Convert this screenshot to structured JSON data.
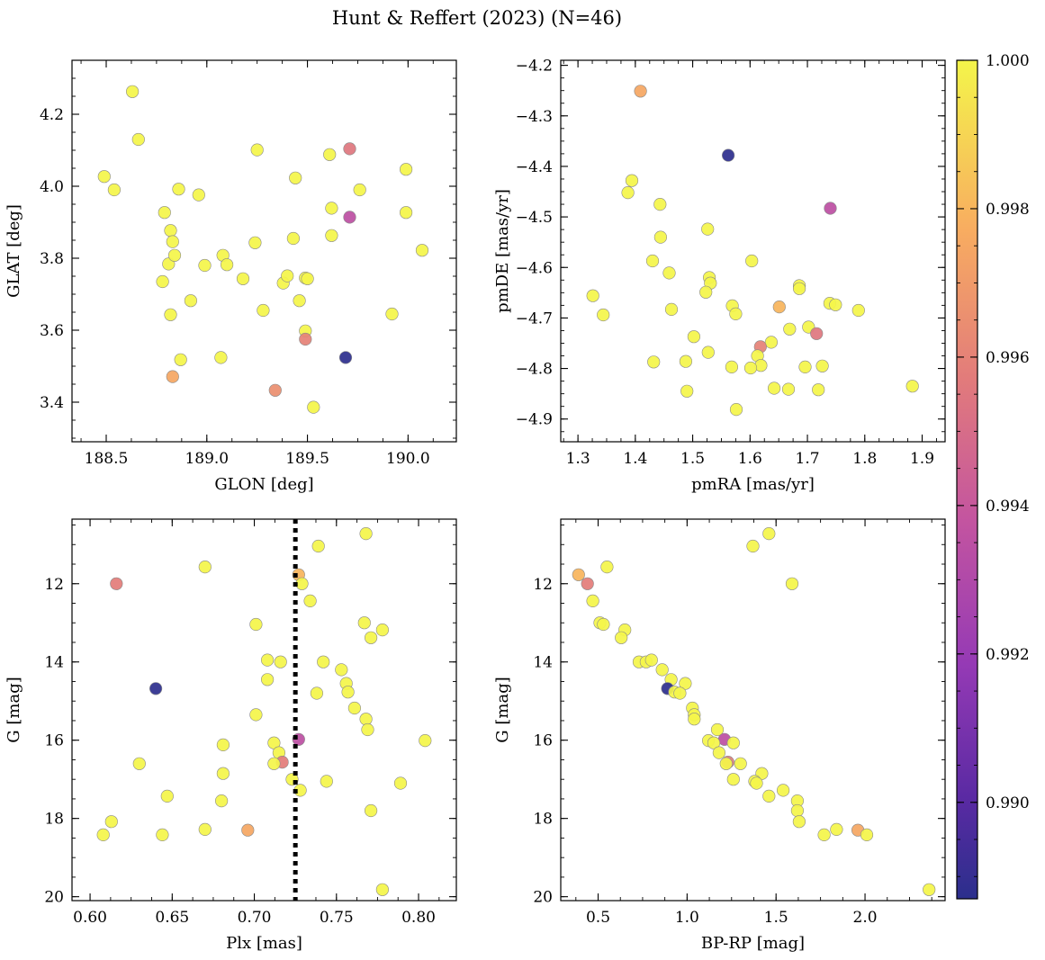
{
  "figure": {
    "title": "Hunt & Reffert (2023) (N=46)"
  },
  "colorbar": {
    "colormap": "plasma",
    "range": [
      0.9887,
      1.0
    ],
    "ticks": [
      0.99,
      0.992,
      0.994,
      0.996,
      0.998,
      1.0
    ],
    "tick_labels": [
      "0.990",
      "0.992",
      "0.994",
      "0.996",
      "0.998",
      "1.000"
    ]
  },
  "chart_data": [
    {
      "type": "scatter",
      "id": "glon-glat",
      "xlabel": "GLON [deg]",
      "ylabel": "GLAT [deg]",
      "xlim": [
        188.33,
        190.24
      ],
      "ylim": [
        3.29,
        4.35
      ],
      "y_inverted": false,
      "xticks": [
        188.5,
        189.0,
        189.5,
        190.0
      ],
      "xtick_labels": [
        "188.5",
        "189.0",
        "189.5",
        "190.0"
      ],
      "yticks": [
        3.4,
        3.6,
        3.8,
        4.0,
        4.2
      ],
      "ytick_labels": [
        "3.4",
        "3.6",
        "3.8",
        "4.0",
        "4.2"
      ],
      "points": [
        {
          "x": 188.49,
          "y": 4.027,
          "c": 1.0
        },
        {
          "x": 188.54,
          "y": 3.99,
          "c": 1.0
        },
        {
          "x": 188.63,
          "y": 4.263,
          "c": 1.0
        },
        {
          "x": 188.66,
          "y": 4.13,
          "c": 1.0
        },
        {
          "x": 188.78,
          "y": 3.735,
          "c": 1.0
        },
        {
          "x": 188.79,
          "y": 3.927,
          "c": 1.0
        },
        {
          "x": 188.81,
          "y": 3.784,
          "c": 1.0
        },
        {
          "x": 188.82,
          "y": 3.877,
          "c": 1.0
        },
        {
          "x": 188.83,
          "y": 3.846,
          "c": 1.0
        },
        {
          "x": 188.84,
          "y": 3.808,
          "c": 1.0
        },
        {
          "x": 188.82,
          "y": 3.643,
          "c": 1.0
        },
        {
          "x": 188.86,
          "y": 3.992,
          "c": 1.0
        },
        {
          "x": 188.83,
          "y": 3.471,
          "c": 0.9975
        },
        {
          "x": 188.87,
          "y": 3.518,
          "c": 1.0
        },
        {
          "x": 188.92,
          "y": 3.682,
          "c": 1.0
        },
        {
          "x": 188.96,
          "y": 3.976,
          "c": 1.0
        },
        {
          "x": 188.99,
          "y": 3.78,
          "c": 1.0
        },
        {
          "x": 189.07,
          "y": 3.524,
          "c": 1.0
        },
        {
          "x": 189.08,
          "y": 3.808,
          "c": 1.0
        },
        {
          "x": 189.1,
          "y": 3.782,
          "c": 1.0
        },
        {
          "x": 189.18,
          "y": 3.743,
          "c": 1.0
        },
        {
          "x": 189.24,
          "y": 3.843,
          "c": 1.0
        },
        {
          "x": 189.25,
          "y": 4.101,
          "c": 1.0
        },
        {
          "x": 189.28,
          "y": 3.655,
          "c": 1.0
        },
        {
          "x": 189.34,
          "y": 3.433,
          "c": 0.9965
        },
        {
          "x": 189.38,
          "y": 3.731,
          "c": 1.0
        },
        {
          "x": 189.4,
          "y": 3.751,
          "c": 1.0
        },
        {
          "x": 189.43,
          "y": 3.855,
          "c": 1.0
        },
        {
          "x": 189.44,
          "y": 4.023,
          "c": 1.0
        },
        {
          "x": 189.46,
          "y": 3.682,
          "c": 1.0
        },
        {
          "x": 189.49,
          "y": 3.745,
          "c": 1.0
        },
        {
          "x": 189.5,
          "y": 3.743,
          "c": 1.0
        },
        {
          "x": 189.49,
          "y": 3.598,
          "c": 1.0
        },
        {
          "x": 189.49,
          "y": 3.575,
          "c": 0.996
        },
        {
          "x": 189.53,
          "y": 3.386,
          "c": 1.0
        },
        {
          "x": 189.61,
          "y": 4.088,
          "c": 1.0
        },
        {
          "x": 189.62,
          "y": 3.939,
          "c": 1.0
        },
        {
          "x": 189.62,
          "y": 3.863,
          "c": 1.0
        },
        {
          "x": 189.69,
          "y": 3.524,
          "c": 0.9888
        },
        {
          "x": 189.71,
          "y": 4.104,
          "c": 0.9955
        },
        {
          "x": 189.71,
          "y": 3.914,
          "c": 0.9935
        },
        {
          "x": 189.76,
          "y": 3.99,
          "c": 1.0
        },
        {
          "x": 189.92,
          "y": 3.645,
          "c": 1.0
        },
        {
          "x": 189.99,
          "y": 4.047,
          "c": 1.0
        },
        {
          "x": 189.99,
          "y": 3.927,
          "c": 1.0
        },
        {
          "x": 190.07,
          "y": 3.822,
          "c": 1.0
        }
      ]
    },
    {
      "type": "scatter",
      "id": "pmra-pmde",
      "xlabel": "pmRA [mas/yr]",
      "ylabel": "pmDE [mas/yr]",
      "xlim": [
        1.27,
        1.94
      ],
      "ylim": [
        -4.945,
        -4.19
      ],
      "y_inverted": false,
      "xticks": [
        1.3,
        1.4,
        1.5,
        1.6,
        1.7,
        1.8,
        1.9
      ],
      "xtick_labels": [
        "1.3",
        "1.4",
        "1.5",
        "1.6",
        "1.7",
        "1.8",
        "1.9"
      ],
      "yticks": [
        -4.9,
        -4.8,
        -4.7,
        -4.6,
        -4.5,
        -4.4,
        -4.3,
        -4.2
      ],
      "ytick_labels": [
        "−4.9",
        "−4.8",
        "−4.7",
        "−4.6",
        "−4.5",
        "−4.4",
        "−4.3",
        "−4.2"
      ],
      "points": [
        {
          "x": 1.409,
          "y": -4.251,
          "c": 0.9975
        },
        {
          "x": 1.562,
          "y": -4.378,
          "c": 0.9888
        },
        {
          "x": 1.394,
          "y": -4.428,
          "c": 1.0
        },
        {
          "x": 1.387,
          "y": -4.452,
          "c": 1.0
        },
        {
          "x": 1.443,
          "y": -4.475,
          "c": 1.0
        },
        {
          "x": 1.74,
          "y": -4.483,
          "c": 0.9935
        },
        {
          "x": 1.526,
          "y": -4.524,
          "c": 1.0
        },
        {
          "x": 1.444,
          "y": -4.54,
          "c": 1.0
        },
        {
          "x": 1.43,
          "y": -4.587,
          "c": 1.0
        },
        {
          "x": 1.603,
          "y": -4.587,
          "c": 1.0
        },
        {
          "x": 1.459,
          "y": -4.611,
          "c": 1.0
        },
        {
          "x": 1.529,
          "y": -4.62,
          "c": 1.0
        },
        {
          "x": 1.531,
          "y": -4.631,
          "c": 1.0
        },
        {
          "x": 1.686,
          "y": -4.636,
          "c": 1.0
        },
        {
          "x": 1.686,
          "y": -4.642,
          "c": 1.0
        },
        {
          "x": 1.523,
          "y": -4.649,
          "c": 1.0
        },
        {
          "x": 1.326,
          "y": -4.656,
          "c": 1.0
        },
        {
          "x": 1.739,
          "y": -4.671,
          "c": 1.0
        },
        {
          "x": 1.749,
          "y": -4.674,
          "c": 1.0
        },
        {
          "x": 1.569,
          "y": -4.676,
          "c": 1.0
        },
        {
          "x": 1.651,
          "y": -4.678,
          "c": 0.998
        },
        {
          "x": 1.463,
          "y": -4.683,
          "c": 1.0
        },
        {
          "x": 1.789,
          "y": -4.685,
          "c": 1.0
        },
        {
          "x": 1.575,
          "y": -4.692,
          "c": 1.0
        },
        {
          "x": 1.344,
          "y": -4.694,
          "c": 1.0
        },
        {
          "x": 1.702,
          "y": -4.718,
          "c": 1.0
        },
        {
          "x": 1.669,
          "y": -4.722,
          "c": 1.0
        },
        {
          "x": 1.716,
          "y": -4.731,
          "c": 0.9955
        },
        {
          "x": 1.502,
          "y": -4.737,
          "c": 1.0
        },
        {
          "x": 1.637,
          "y": -4.748,
          "c": 1.0
        },
        {
          "x": 1.618,
          "y": -4.757,
          "c": 0.996
        },
        {
          "x": 1.527,
          "y": -4.768,
          "c": 1.0
        },
        {
          "x": 1.613,
          "y": -4.775,
          "c": 1.0
        },
        {
          "x": 1.488,
          "y": -4.786,
          "c": 1.0
        },
        {
          "x": 1.432,
          "y": -4.787,
          "c": 1.0
        },
        {
          "x": 1.619,
          "y": -4.794,
          "c": 1.0
        },
        {
          "x": 1.726,
          "y": -4.795,
          "c": 1.0
        },
        {
          "x": 1.696,
          "y": -4.797,
          "c": 1.0
        },
        {
          "x": 1.568,
          "y": -4.797,
          "c": 1.0
        },
        {
          "x": 1.601,
          "y": -4.799,
          "c": 1.0
        },
        {
          "x": 1.883,
          "y": -4.835,
          "c": 1.0
        },
        {
          "x": 1.642,
          "y": -4.839,
          "c": 1.0
        },
        {
          "x": 1.667,
          "y": -4.841,
          "c": 1.0
        },
        {
          "x": 1.719,
          "y": -4.842,
          "c": 1.0
        },
        {
          "x": 1.49,
          "y": -4.845,
          "c": 1.0
        },
        {
          "x": 1.576,
          "y": -4.881,
          "c": 1.0
        }
      ]
    },
    {
      "type": "scatter",
      "id": "plx-g",
      "xlabel": "Plx [mas]",
      "ylabel": "G [mag]",
      "xlim": [
        0.589,
        0.823
      ],
      "ylim": [
        10.35,
        20.1
      ],
      "y_inverted": true,
      "xticks": [
        0.6,
        0.65,
        0.7,
        0.75,
        0.8
      ],
      "xtick_labels": [
        "0.60",
        "0.65",
        "0.70",
        "0.75",
        "0.80"
      ],
      "yticks": [
        12,
        14,
        16,
        18,
        20
      ],
      "ytick_labels": [
        "12",
        "14",
        "16",
        "18",
        "20"
      ],
      "vline": {
        "x": 0.725,
        "style": "dotted"
      },
      "points": [
        {
          "x": 0.768,
          "y": 10.72,
          "c": 1.0
        },
        {
          "x": 0.739,
          "y": 11.04,
          "c": 1.0
        },
        {
          "x": 0.67,
          "y": 11.57,
          "c": 1.0
        },
        {
          "x": 0.727,
          "y": 11.77,
          "c": 0.998
        },
        {
          "x": 0.616,
          "y": 12.0,
          "c": 0.9958
        },
        {
          "x": 0.729,
          "y": 12.0,
          "c": 1.0
        },
        {
          "x": 0.734,
          "y": 12.44,
          "c": 1.0
        },
        {
          "x": 0.701,
          "y": 13.04,
          "c": 1.0
        },
        {
          "x": 0.767,
          "y": 13.0,
          "c": 1.0
        },
        {
          "x": 0.778,
          "y": 13.18,
          "c": 1.0
        },
        {
          "x": 0.771,
          "y": 13.38,
          "c": 1.0
        },
        {
          "x": 0.708,
          "y": 13.95,
          "c": 1.0
        },
        {
          "x": 0.716,
          "y": 14.0,
          "c": 1.0
        },
        {
          "x": 0.742,
          "y": 14.0,
          "c": 1.0
        },
        {
          "x": 0.753,
          "y": 14.2,
          "c": 1.0
        },
        {
          "x": 0.708,
          "y": 14.45,
          "c": 1.0
        },
        {
          "x": 0.756,
          "y": 14.55,
          "c": 1.0
        },
        {
          "x": 0.64,
          "y": 14.68,
          "c": 0.9888
        },
        {
          "x": 0.757,
          "y": 14.77,
          "c": 1.0
        },
        {
          "x": 0.738,
          "y": 14.8,
          "c": 1.0
        },
        {
          "x": 0.761,
          "y": 15.18,
          "c": 1.0
        },
        {
          "x": 0.701,
          "y": 15.35,
          "c": 1.0
        },
        {
          "x": 0.768,
          "y": 15.46,
          "c": 1.0
        },
        {
          "x": 0.769,
          "y": 15.73,
          "c": 1.0
        },
        {
          "x": 0.727,
          "y": 15.98,
          "c": 0.9935
        },
        {
          "x": 0.804,
          "y": 16.01,
          "c": 1.0
        },
        {
          "x": 0.712,
          "y": 16.07,
          "c": 1.0
        },
        {
          "x": 0.681,
          "y": 16.12,
          "c": 1.0
        },
        {
          "x": 0.715,
          "y": 16.32,
          "c": 1.0
        },
        {
          "x": 0.717,
          "y": 16.56,
          "c": 0.9958
        },
        {
          "x": 0.63,
          "y": 16.6,
          "c": 1.0
        },
        {
          "x": 0.712,
          "y": 16.6,
          "c": 1.0
        },
        {
          "x": 0.681,
          "y": 16.85,
          "c": 1.0
        },
        {
          "x": 0.723,
          "y": 17.0,
          "c": 1.0
        },
        {
          "x": 0.744,
          "y": 17.05,
          "c": 1.0
        },
        {
          "x": 0.789,
          "y": 17.1,
          "c": 1.0
        },
        {
          "x": 0.728,
          "y": 17.28,
          "c": 1.0
        },
        {
          "x": 0.647,
          "y": 17.43,
          "c": 1.0
        },
        {
          "x": 0.68,
          "y": 17.55,
          "c": 1.0
        },
        {
          "x": 0.771,
          "y": 17.8,
          "c": 1.0
        },
        {
          "x": 0.613,
          "y": 18.08,
          "c": 1.0
        },
        {
          "x": 0.67,
          "y": 18.28,
          "c": 1.0
        },
        {
          "x": 0.696,
          "y": 18.3,
          "c": 0.9975
        },
        {
          "x": 0.608,
          "y": 18.42,
          "c": 1.0
        },
        {
          "x": 0.644,
          "y": 18.42,
          "c": 1.0
        },
        {
          "x": 0.778,
          "y": 19.82,
          "c": 1.0
        }
      ]
    },
    {
      "type": "scatter",
      "id": "bprp-g",
      "xlabel": "BP-RP [mag]",
      "ylabel": "G [mag]",
      "xlim": [
        0.29,
        2.45
      ],
      "ylim": [
        10.35,
        20.1
      ],
      "y_inverted": true,
      "xticks": [
        0.5,
        1.0,
        1.5,
        2.0
      ],
      "xtick_labels": [
        "0.5",
        "1.0",
        "1.5",
        "2.0"
      ],
      "yticks": [
        12,
        14,
        16,
        18,
        20
      ],
      "ytick_labels": [
        "12",
        "14",
        "16",
        "18",
        "20"
      ],
      "points": [
        {
          "x": 1.46,
          "y": 10.72,
          "c": 1.0
        },
        {
          "x": 1.37,
          "y": 11.04,
          "c": 1.0
        },
        {
          "x": 0.55,
          "y": 11.57,
          "c": 1.0
        },
        {
          "x": 0.39,
          "y": 11.77,
          "c": 0.998
        },
        {
          "x": 0.44,
          "y": 12.0,
          "c": 0.9958
        },
        {
          "x": 1.59,
          "y": 12.0,
          "c": 1.0
        },
        {
          "x": 0.47,
          "y": 12.44,
          "c": 1.0
        },
        {
          "x": 0.51,
          "y": 13.0,
          "c": 1.0
        },
        {
          "x": 0.53,
          "y": 13.04,
          "c": 1.0
        },
        {
          "x": 0.65,
          "y": 13.18,
          "c": 1.0
        },
        {
          "x": 0.63,
          "y": 13.38,
          "c": 1.0
        },
        {
          "x": 0.73,
          "y": 14.0,
          "c": 1.0
        },
        {
          "x": 0.77,
          "y": 14.0,
          "c": 1.0
        },
        {
          "x": 0.8,
          "y": 13.95,
          "c": 1.0
        },
        {
          "x": 0.86,
          "y": 14.2,
          "c": 1.0
        },
        {
          "x": 0.91,
          "y": 14.45,
          "c": 1.0
        },
        {
          "x": 0.99,
          "y": 14.55,
          "c": 1.0
        },
        {
          "x": 0.89,
          "y": 14.68,
          "c": 0.9888
        },
        {
          "x": 0.93,
          "y": 14.77,
          "c": 1.0
        },
        {
          "x": 0.96,
          "y": 14.8,
          "c": 1.0
        },
        {
          "x": 1.03,
          "y": 15.18,
          "c": 1.0
        },
        {
          "x": 1.04,
          "y": 15.35,
          "c": 1.0
        },
        {
          "x": 1.04,
          "y": 15.46,
          "c": 1.0
        },
        {
          "x": 1.17,
          "y": 15.73,
          "c": 1.0
        },
        {
          "x": 1.21,
          "y": 15.98,
          "c": 0.9935
        },
        {
          "x": 1.12,
          "y": 16.01,
          "c": 1.0
        },
        {
          "x": 1.15,
          "y": 16.07,
          "c": 1.0
        },
        {
          "x": 1.26,
          "y": 16.07,
          "c": 1.0
        },
        {
          "x": 1.18,
          "y": 16.32,
          "c": 1.0
        },
        {
          "x": 1.23,
          "y": 16.56,
          "c": 0.9958
        },
        {
          "x": 1.22,
          "y": 16.6,
          "c": 1.0
        },
        {
          "x": 1.3,
          "y": 16.6,
          "c": 1.0
        },
        {
          "x": 1.42,
          "y": 16.85,
          "c": 1.0
        },
        {
          "x": 1.26,
          "y": 17.0,
          "c": 1.0
        },
        {
          "x": 1.38,
          "y": 17.05,
          "c": 1.0
        },
        {
          "x": 1.39,
          "y": 17.1,
          "c": 1.0
        },
        {
          "x": 1.54,
          "y": 17.28,
          "c": 1.0
        },
        {
          "x": 1.46,
          "y": 17.43,
          "c": 1.0
        },
        {
          "x": 1.62,
          "y": 17.55,
          "c": 1.0
        },
        {
          "x": 1.62,
          "y": 17.8,
          "c": 1.0
        },
        {
          "x": 1.63,
          "y": 18.08,
          "c": 1.0
        },
        {
          "x": 1.84,
          "y": 18.28,
          "c": 1.0
        },
        {
          "x": 1.96,
          "y": 18.3,
          "c": 0.9975
        },
        {
          "x": 1.77,
          "y": 18.42,
          "c": 1.0
        },
        {
          "x": 2.01,
          "y": 18.42,
          "c": 1.0
        },
        {
          "x": 2.36,
          "y": 19.82,
          "c": 1.0
        }
      ]
    }
  ]
}
